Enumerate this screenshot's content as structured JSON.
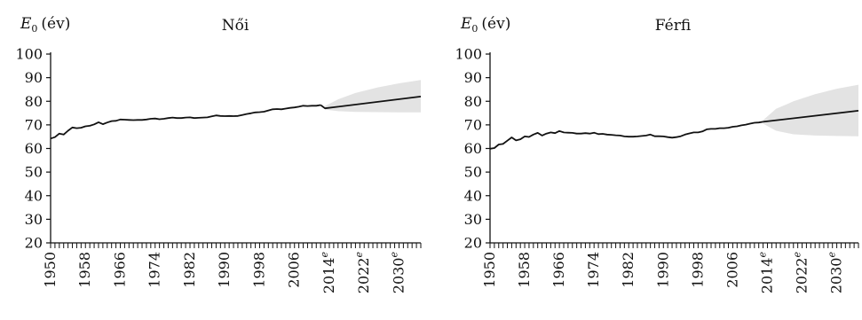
{
  "chart_data": [
    {
      "type": "line",
      "title": "Női",
      "ylabel_symbol": "E",
      "ylabel_sub": "0",
      "ylabel_unit": "(év)",
      "ylim": [
        20,
        100
      ],
      "yticks": [
        20,
        30,
        40,
        50,
        60,
        70,
        80,
        90,
        100
      ],
      "xlim": [
        1950,
        2035
      ],
      "xtick_labels": [
        "1950",
        "1958",
        "1966",
        "1974",
        "1982",
        "1990",
        "1998",
        "2006",
        "2014",
        "2022",
        "2030"
      ],
      "xtick_label_years": [
        1950,
        1958,
        1966,
        1974,
        1982,
        1990,
        1998,
        2006,
        2014,
        2022,
        2030
      ],
      "estimate_marker": "e",
      "estimate_marker_on": [
        "2014",
        "2022",
        "2030"
      ],
      "grid": false,
      "series": [
        {
          "role": "observed",
          "x": [
            1950,
            1951,
            1952,
            1953,
            1954,
            1955,
            1956,
            1957,
            1958,
            1959,
            1960,
            1961,
            1962,
            1963,
            1964,
            1965,
            1966,
            1967,
            1968,
            1969,
            1970,
            1971,
            1972,
            1973,
            1974,
            1975,
            1976,
            1977,
            1978,
            1979,
            1980,
            1981,
            1982,
            1983,
            1984,
            1985,
            1986,
            1987,
            1988,
            1989,
            1990,
            1991,
            1992,
            1993,
            1994,
            1995,
            1996,
            1997,
            1998,
            1999,
            2000,
            2001,
            2002,
            2003,
            2004,
            2005,
            2006,
            2007,
            2008,
            2009,
            2010,
            2011,
            2012
          ],
          "y": [
            64.2,
            64.8,
            66.3,
            65.9,
            67.5,
            68.9,
            68.6,
            68.8,
            69.4,
            69.6,
            70.2,
            71.1,
            70.3,
            71.0,
            71.6,
            71.7,
            72.3,
            72.2,
            72.1,
            72.0,
            72.1,
            72.1,
            72.3,
            72.6,
            72.7,
            72.4,
            72.6,
            72.9,
            73.1,
            72.9,
            72.9,
            73.1,
            73.2,
            72.9,
            73.0,
            73.1,
            73.2,
            73.6,
            74.0,
            73.8,
            73.7,
            73.8,
            73.7,
            73.8,
            74.2,
            74.6,
            74.9,
            75.3,
            75.4,
            75.6,
            76.1,
            76.6,
            76.7,
            76.6,
            76.9,
            77.2,
            77.4,
            77.7,
            78.1,
            78.0,
            78.1,
            78.1,
            78.4
          ]
        },
        {
          "role": "projection",
          "x": [
            2012,
            2013,
            2035
          ],
          "y": [
            78.4,
            77.0,
            82.0
          ]
        }
      ],
      "band": {
        "x": [
          2013,
          2016,
          2020,
          2025,
          2030,
          2035
        ],
        "upper": [
          78.0,
          80.8,
          83.5,
          85.8,
          87.6,
          89.0
        ],
        "lower": [
          76.5,
          75.8,
          75.5,
          75.4,
          75.3,
          75.3
        ]
      },
      "colors": {
        "line": "#111111",
        "band": "#e3e3e3",
        "axis": "#111111"
      }
    },
    {
      "type": "line",
      "title": "Férfi",
      "ylabel_symbol": "E",
      "ylabel_sub": "0",
      "ylabel_unit": "(év)",
      "ylim": [
        20,
        100
      ],
      "yticks": [
        20,
        30,
        40,
        50,
        60,
        70,
        80,
        90,
        100
      ],
      "xlim": [
        1950,
        2035
      ],
      "xtick_labels": [
        "1950",
        "1958",
        "1966",
        "1974",
        "1982",
        "1990",
        "1998",
        "2006",
        "2014",
        "2022",
        "2030"
      ],
      "xtick_label_years": [
        1950,
        1958,
        1966,
        1974,
        1982,
        1990,
        1998,
        2006,
        2014,
        2022,
        2030
      ],
      "estimate_marker": "e",
      "estimate_marker_on": [
        "2014",
        "2022",
        "2030"
      ],
      "grid": false,
      "series": [
        {
          "role": "observed",
          "x": [
            1950,
            1951,
            1952,
            1953,
            1954,
            1955,
            1956,
            1957,
            1958,
            1959,
            1960,
            1961,
            1962,
            1963,
            1964,
            1965,
            1966,
            1967,
            1968,
            1969,
            1970,
            1971,
            1972,
            1973,
            1974,
            1975,
            1976,
            1977,
            1978,
            1979,
            1980,
            1981,
            1982,
            1983,
            1984,
            1985,
            1986,
            1987,
            1988,
            1989,
            1990,
            1991,
            1992,
            1993,
            1994,
            1995,
            1996,
            1997,
            1998,
            1999,
            2000,
            2001,
            2002,
            2003,
            2004,
            2005,
            2006,
            2007,
            2008,
            2009,
            2010,
            2011,
            2012,
            2013
          ],
          "y": [
            59.9,
            60.2,
            61.7,
            61.9,
            63.3,
            64.7,
            63.4,
            63.9,
            65.1,
            64.9,
            65.9,
            66.6,
            65.5,
            66.3,
            66.8,
            66.5,
            67.4,
            66.8,
            66.7,
            66.6,
            66.3,
            66.3,
            66.5,
            66.3,
            66.7,
            66.1,
            66.2,
            65.9,
            65.8,
            65.6,
            65.5,
            65.1,
            65.0,
            65.0,
            65.1,
            65.3,
            65.5,
            65.9,
            65.2,
            65.2,
            65.1,
            64.8,
            64.6,
            64.8,
            65.2,
            65.9,
            66.4,
            66.8,
            66.8,
            67.2,
            68.1,
            68.3,
            68.3,
            68.6,
            68.6,
            68.8,
            69.2,
            69.4,
            69.8,
            70.1,
            70.5,
            70.9,
            71.0,
            71.3
          ]
        },
        {
          "role": "projection",
          "x": [
            2013,
            2035
          ],
          "y": [
            71.3,
            76.0
          ]
        }
      ],
      "band": {
        "x": [
          2013,
          2016,
          2020,
          2025,
          2030,
          2035
        ],
        "upper": [
          72.0,
          76.8,
          80.0,
          83.0,
          85.3,
          87.0
        ],
        "lower": [
          70.5,
          67.5,
          66.0,
          65.5,
          65.3,
          65.2
        ]
      },
      "colors": {
        "line": "#111111",
        "band": "#e3e3e3",
        "axis": "#111111"
      }
    }
  ]
}
